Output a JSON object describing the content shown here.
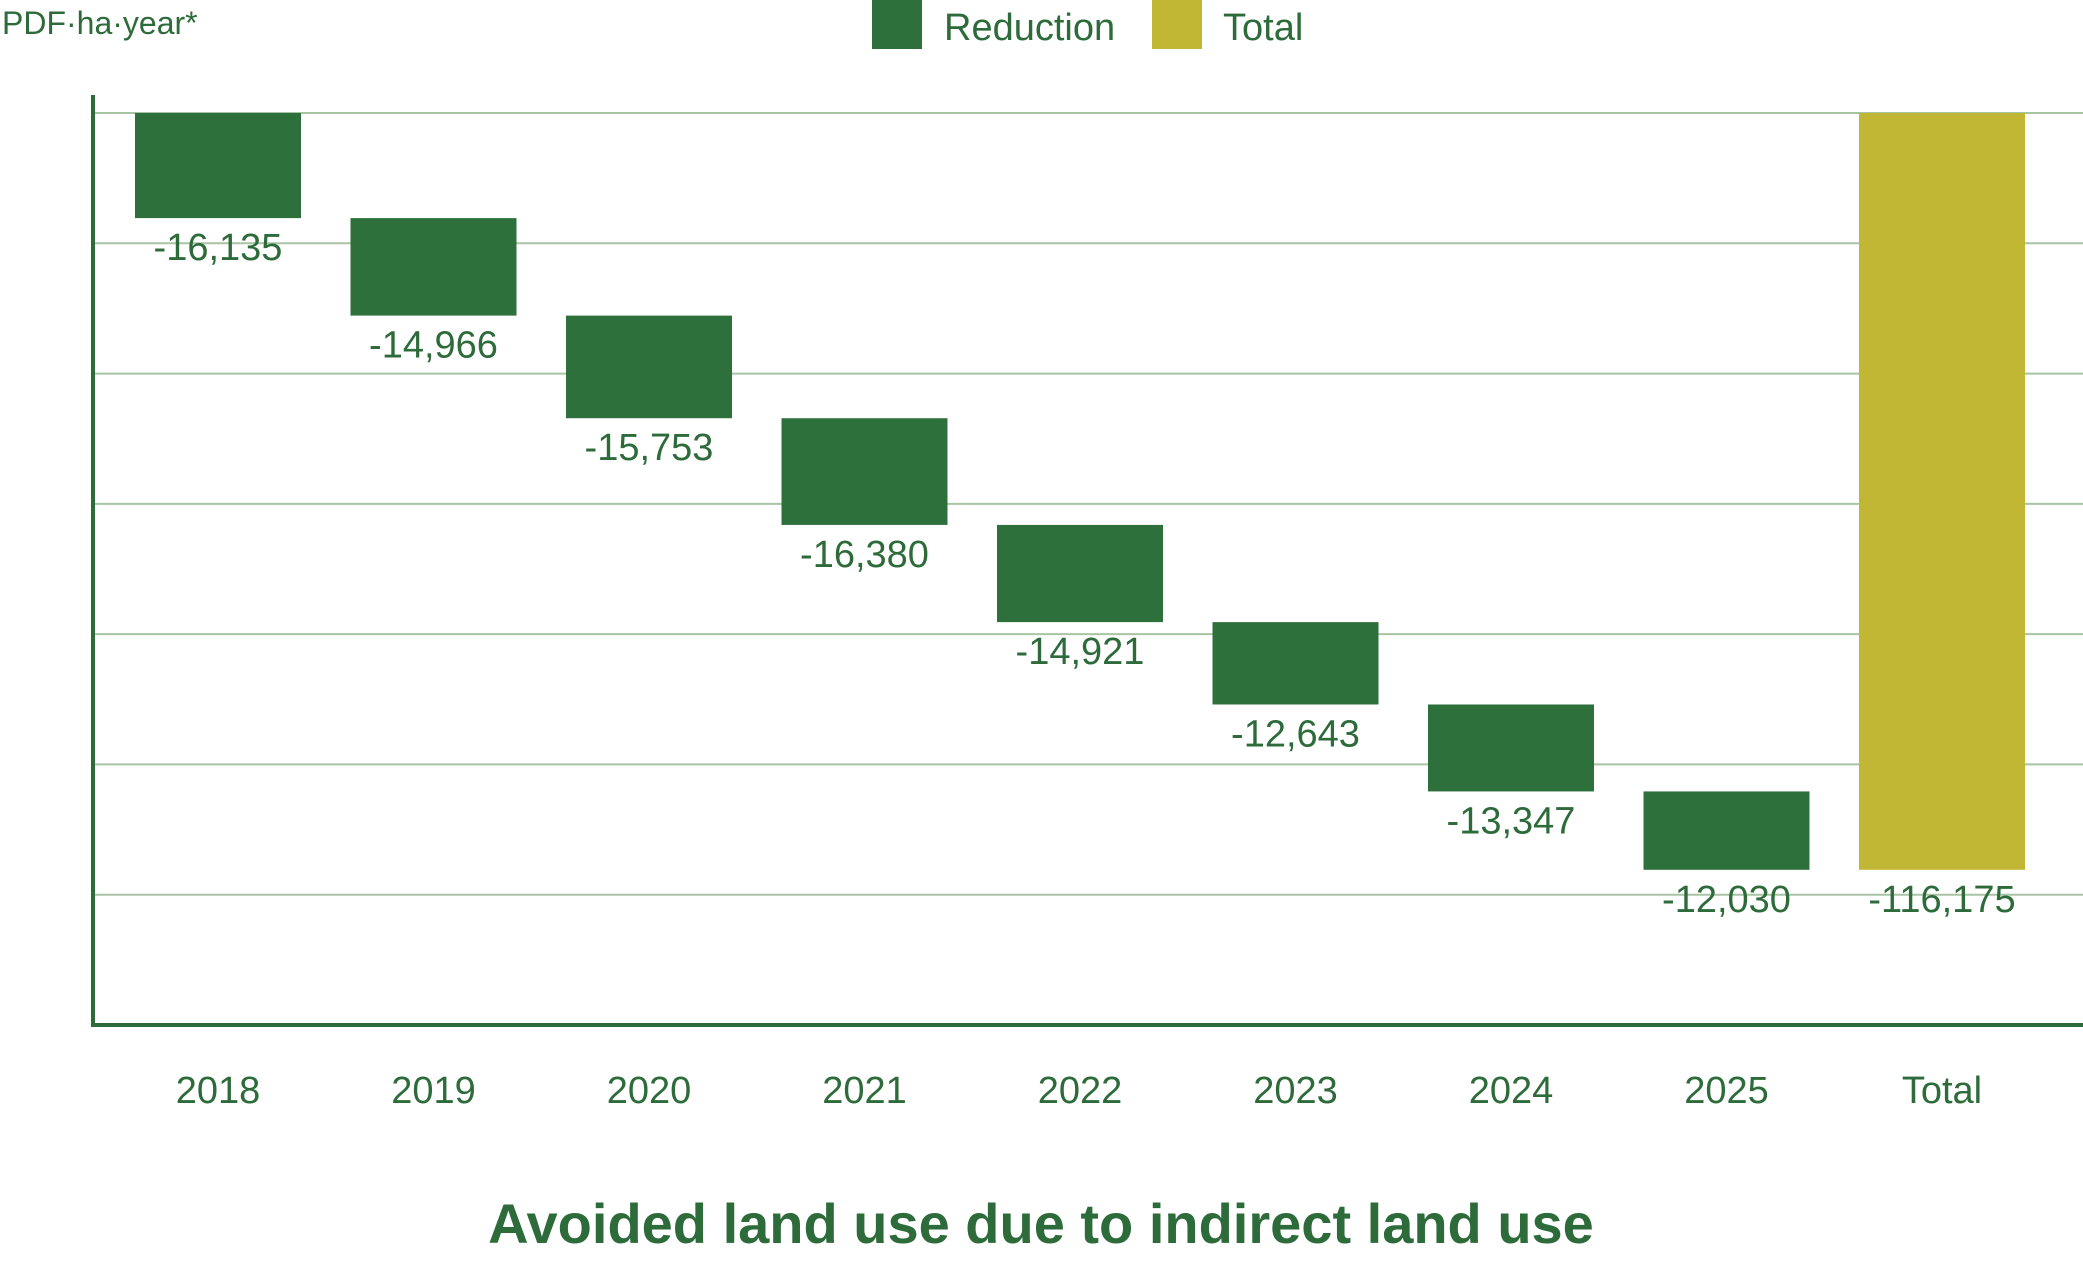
{
  "chart_data": {
    "type": "bar",
    "subtype": "waterfall",
    "title": "Avoided land use due to indirect land use",
    "ylabel": "PDF·ha·year*",
    "xlabel": "",
    "categories": [
      "2018",
      "2019",
      "2020",
      "2021",
      "2022",
      "2023",
      "2024",
      "2025",
      "Total"
    ],
    "series": [
      {
        "name": "Reduction",
        "color": "#2e703c",
        "values": [
          -16135,
          -14966,
          -15753,
          -16380,
          -14921,
          -12643,
          -13347,
          -12030,
          null
        ]
      },
      {
        "name": "Total",
        "color": "#c2b734",
        "values": [
          null,
          null,
          null,
          null,
          null,
          null,
          null,
          null,
          -116175
        ]
      }
    ],
    "value_labels": [
      "-16,135",
      "-14,966",
      "-15,753",
      "-16,380",
      "-14,921",
      "-12,643",
      "-13,347",
      "-12,030",
      "-116,175"
    ],
    "ylim": [
      -140000,
      0
    ],
    "grid": true,
    "legend_position": "top-center"
  },
  "legend": {
    "items": [
      {
        "label": "Reduction",
        "color": "#2e703c"
      },
      {
        "label": "Total",
        "color": "#c2b734"
      }
    ]
  },
  "colors": {
    "text": "#2e6b3a",
    "axis": "#2e6b3a",
    "grid": "#a9c4a5"
  }
}
